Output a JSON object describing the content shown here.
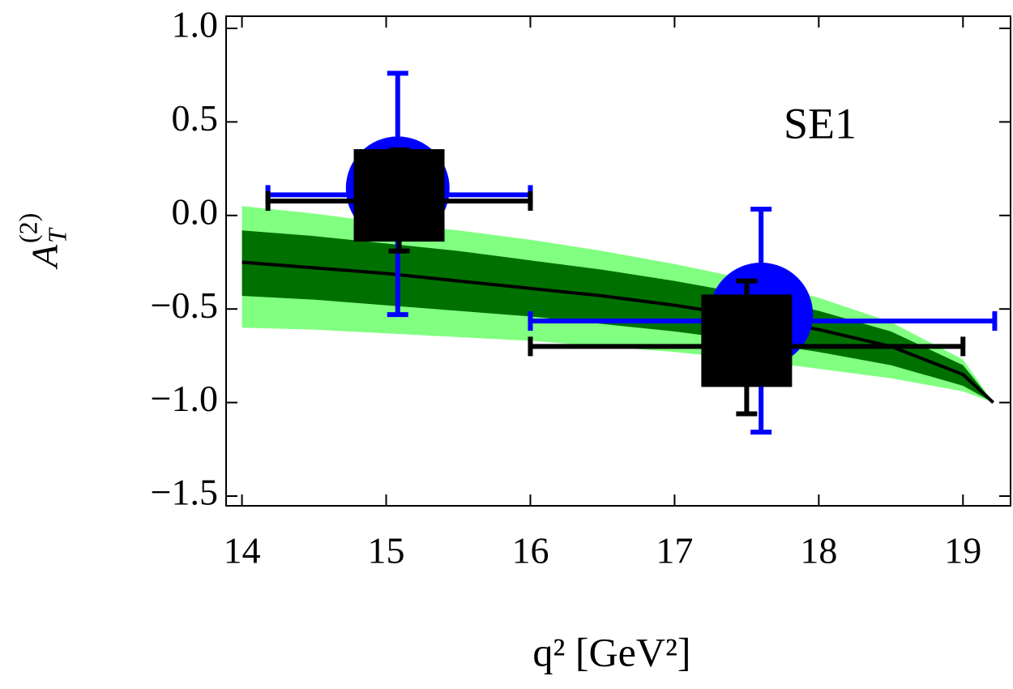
{
  "chart_data": {
    "type": "errorbar",
    "annotation": "SE1",
    "x_label": "q²  [GeV²]",
    "y_label": {
      "base": "A",
      "sub": "T",
      "sup": "(2)"
    },
    "xlim": [
      13.89,
      19.33
    ],
    "ylim": [
      -1.552,
      1.065
    ],
    "xticks": [
      14,
      15,
      16,
      17,
      18,
      19
    ],
    "yticks": [
      {
        "value": 1,
        "label": "1.0"
      },
      {
        "value": 0.5,
        "label": "0.5"
      },
      {
        "value": 0,
        "label": "0.0"
      },
      {
        "value": -0.5,
        "label": "−0.5"
      },
      {
        "value": -1,
        "label": "−1.0"
      },
      {
        "value": -1.5,
        "label": "−1.5"
      }
    ],
    "curve_x": [
      14,
      14.5,
      15,
      15.5,
      16,
      16.5,
      17,
      17.5,
      18,
      18.5,
      19,
      19.21
    ],
    "bands": [
      {
        "color": "#80ff80",
        "upper": [
          0.05,
          0.01,
          -0.04,
          -0.08,
          -0.13,
          -0.19,
          -0.26,
          -0.34,
          -0.44,
          -0.57,
          -0.77,
          -1.0
        ],
        "lower": [
          -0.6,
          -0.61,
          -0.63,
          -0.65,
          -0.67,
          -0.7,
          -0.73,
          -0.77,
          -0.82,
          -0.87,
          -0.94,
          -1.0
        ]
      },
      {
        "color": "#007000",
        "upper": [
          -0.08,
          -0.11,
          -0.15,
          -0.19,
          -0.24,
          -0.29,
          -0.35,
          -0.42,
          -0.51,
          -0.62,
          -0.8,
          -1.0
        ],
        "lower": [
          -0.43,
          -0.45,
          -0.48,
          -0.51,
          -0.54,
          -0.58,
          -0.62,
          -0.67,
          -0.73,
          -0.8,
          -0.91,
          -1.0
        ]
      }
    ],
    "curve": {
      "color": "#000000",
      "values": [
        -0.25,
        -0.28,
        -0.31,
        -0.35,
        -0.39,
        -0.43,
        -0.48,
        -0.54,
        -0.61,
        -0.7,
        -0.85,
        -1.0
      ]
    },
    "series": [
      {
        "marker": "circle",
        "color": "#0000ff",
        "x": [
          15.08,
          17.6
        ],
        "values": [
          0.11,
          -0.564
        ],
        "x_low": [
          14.18,
          16
        ],
        "x_high": [
          16,
          19.22
        ],
        "y_low": [
          -0.53,
          -1.158
        ],
        "y_high": [
          0.76,
          0.034
        ]
      },
      {
        "marker": "square",
        "color": "#000000",
        "x": [
          15.09,
          17.5
        ],
        "values": [
          0.077,
          -0.7
        ],
        "x_low": [
          14.18,
          16
        ],
        "x_high": [
          16,
          19.0
        ],
        "y_low": [
          -0.19,
          -1.06
        ],
        "y_high": [
          0.35,
          -0.35
        ]
      }
    ]
  }
}
